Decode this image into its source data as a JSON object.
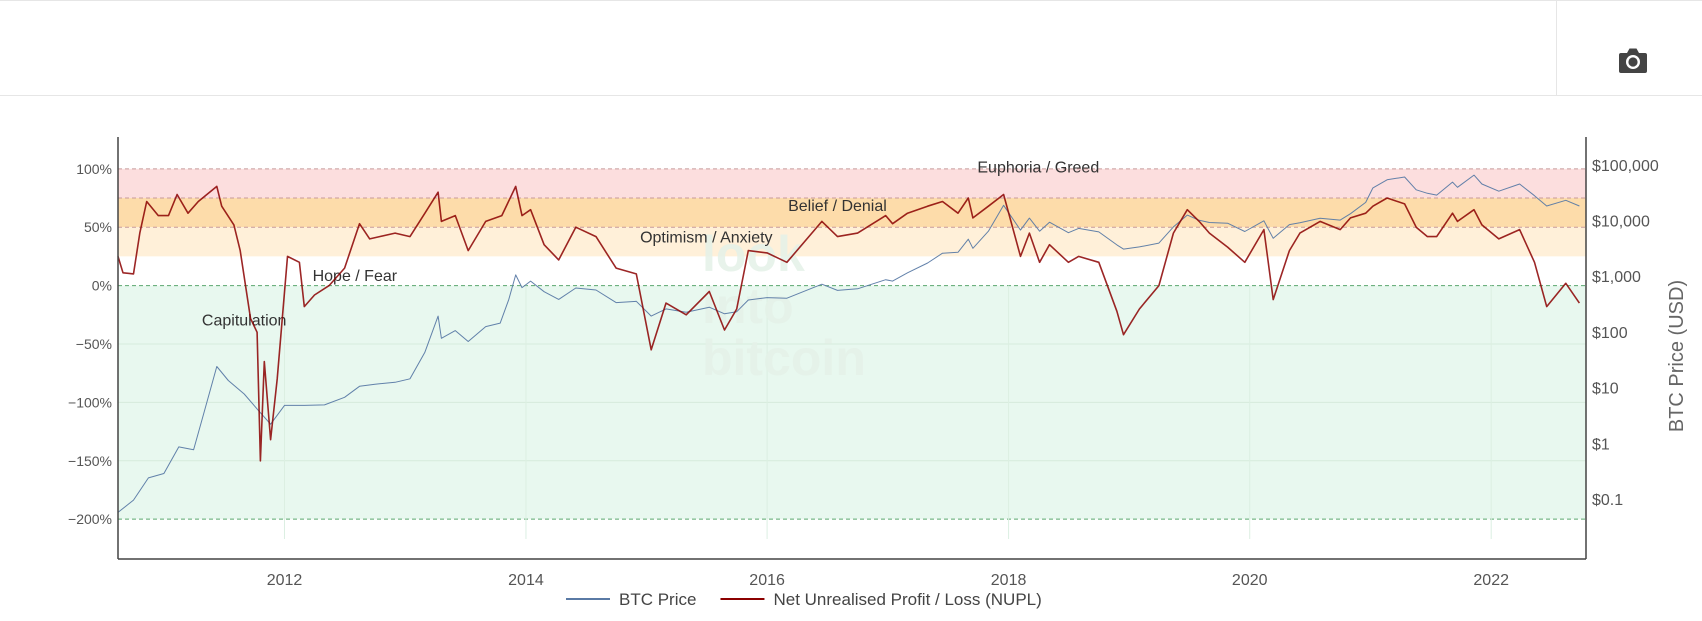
{
  "toolbar": {
    "camera_icon": "camera-icon"
  },
  "chart_data": {
    "type": "line",
    "xlabel": "",
    "ylabel_left": "",
    "ylabel_right": "BTC Price (USD)",
    "x_range": [
      "2010-08-15",
      "2022-10-15"
    ],
    "x_ticks": [
      "2012",
      "2014",
      "2016",
      "2018",
      "2020",
      "2022"
    ],
    "y_left_range": [
      -2.17,
      1.17
    ],
    "y_left_ticks": [
      {
        "v": 1.0,
        "label": "100%"
      },
      {
        "v": 0.5,
        "label": "50%"
      },
      {
        "v": 0.0,
        "label": "0%"
      },
      {
        "v": -0.5,
        "label": "−50%"
      },
      {
        "v": -1.0,
        "label": "−100%"
      },
      {
        "v": -1.5,
        "label": "−150%"
      },
      {
        "v": -2.0,
        "label": "−200%"
      }
    ],
    "y_right_scale": "log",
    "y_right_range": [
      0.02,
      200000
    ],
    "y_right_ticks": [
      {
        "v": 100000,
        "label": "$100,000"
      },
      {
        "v": 10000,
        "label": "$10,000"
      },
      {
        "v": 1000,
        "label": "$1,000"
      },
      {
        "v": 100,
        "label": "$100"
      },
      {
        "v": 10,
        "label": "$10"
      },
      {
        "v": 1,
        "label": "$1"
      },
      {
        "v": 0.1,
        "label": "$0.1"
      }
    ],
    "bands": [
      {
        "label": "Euphoria / Greed",
        "from": 0.75,
        "to": 1.0,
        "color": "#fcdede"
      },
      {
        "label": "Belief / Denial",
        "from": 0.5,
        "to": 0.75,
        "color": "#fddcaa"
      },
      {
        "label": "Optimism / Anxiety",
        "from": 0.25,
        "to": 0.5,
        "color": "#fff0d9"
      },
      {
        "label": "Hope / Fear",
        "from": 0.0,
        "to": 0.25,
        "color": "#ffffff"
      },
      {
        "label": "Capitulation",
        "from": -2.0,
        "to": 0.0,
        "color": "#e8f8ef"
      }
    ],
    "band_label_positions": [
      {
        "label": "Euphoria / Greed",
        "x": "2018-04-01",
        "y": 0.97
      },
      {
        "label": "Belief / Denial",
        "x": "2016-08-01",
        "y": 0.64
      },
      {
        "label": "Optimism / Anxiety",
        "x": "2015-07-01",
        "y": 0.37
      },
      {
        "label": "Hope / Fear",
        "x": "2012-08-01",
        "y": 0.04
      },
      {
        "label": "Capitulation",
        "x": "2011-09-01",
        "y": -0.34
      }
    ],
    "watermark": [
      "look",
      "into",
      "bitcoin"
    ],
    "grid": true,
    "legend_position": "bottom-center",
    "series": [
      {
        "name": "BTC Price",
        "color": "#5a7aa5",
        "axis": "right",
        "points": [
          [
            "2010-08-15",
            0.06
          ],
          [
            "2010-10-01",
            0.1
          ],
          [
            "2010-11-15",
            0.25
          ],
          [
            "2011-01-01",
            0.3
          ],
          [
            "2011-02-15",
            0.9
          ],
          [
            "2011-04-01",
            0.8
          ],
          [
            "2011-05-01",
            3.5
          ],
          [
            "2011-06-10",
            25
          ],
          [
            "2011-07-15",
            14
          ],
          [
            "2011-09-01",
            8
          ],
          [
            "2011-10-15",
            4
          ],
          [
            "2011-11-20",
            2.3
          ],
          [
            "2012-01-01",
            5
          ],
          [
            "2012-03-01",
            5
          ],
          [
            "2012-05-01",
            5.1
          ],
          [
            "2012-07-01",
            7
          ],
          [
            "2012-08-15",
            11
          ],
          [
            "2012-10-01",
            12
          ],
          [
            "2012-12-01",
            13
          ],
          [
            "2013-01-15",
            15
          ],
          [
            "2013-03-01",
            45
          ],
          [
            "2013-04-10",
            200
          ],
          [
            "2013-04-20",
            80
          ],
          [
            "2013-06-01",
            110
          ],
          [
            "2013-07-10",
            70
          ],
          [
            "2013-09-01",
            130
          ],
          [
            "2013-10-15",
            150
          ],
          [
            "2013-11-10",
            400
          ],
          [
            "2013-12-01",
            1100
          ],
          [
            "2013-12-20",
            650
          ],
          [
            "2014-01-15",
            850
          ],
          [
            "2014-02-25",
            550
          ],
          [
            "2014-04-10",
            400
          ],
          [
            "2014-06-01",
            640
          ],
          [
            "2014-08-01",
            590
          ],
          [
            "2014-10-01",
            350
          ],
          [
            "2014-12-01",
            370
          ],
          [
            "2015-01-15",
            200
          ],
          [
            "2015-03-01",
            270
          ],
          [
            "2015-05-01",
            235
          ],
          [
            "2015-07-10",
            290
          ],
          [
            "2015-08-25",
            220
          ],
          [
            "2015-10-01",
            240
          ],
          [
            "2015-11-05",
            390
          ],
          [
            "2016-01-01",
            430
          ],
          [
            "2016-03-01",
            420
          ],
          [
            "2016-06-15",
            750
          ],
          [
            "2016-08-01",
            580
          ],
          [
            "2016-10-01",
            620
          ],
          [
            "2016-12-25",
            900
          ],
          [
            "2017-01-15",
            850
          ],
          [
            "2017-03-01",
            1200
          ],
          [
            "2017-05-01",
            1800
          ],
          [
            "2017-06-15",
            2700
          ],
          [
            "2017-08-01",
            2800
          ],
          [
            "2017-09-01",
            4800
          ],
          [
            "2017-09-15",
            3300
          ],
          [
            "2017-11-01",
            6700
          ],
          [
            "2017-12-17",
            19500
          ],
          [
            "2018-02-06",
            7000
          ],
          [
            "2018-03-05",
            11500
          ],
          [
            "2018-04-05",
            6700
          ],
          [
            "2018-05-05",
            9700
          ],
          [
            "2018-07-01",
            6300
          ],
          [
            "2018-08-01",
            7500
          ],
          [
            "2018-10-01",
            6500
          ],
          [
            "2018-11-25",
            3800
          ],
          [
            "2018-12-15",
            3200
          ],
          [
            "2019-02-01",
            3500
          ],
          [
            "2019-04-01",
            4100
          ],
          [
            "2019-05-15",
            8000
          ],
          [
            "2019-06-26",
            13000
          ],
          [
            "2019-08-01",
            10500
          ],
          [
            "2019-09-01",
            9600
          ],
          [
            "2019-10-26",
            9300
          ],
          [
            "2019-12-17",
            6600
          ],
          [
            "2020-02-13",
            10300
          ],
          [
            "2020-03-12",
            5000
          ],
          [
            "2020-04-30",
            8800
          ],
          [
            "2020-06-01",
            9500
          ],
          [
            "2020-08-01",
            11400
          ],
          [
            "2020-10-01",
            10600
          ],
          [
            "2020-11-01",
            13800
          ],
          [
            "2020-12-17",
            22000
          ],
          [
            "2021-01-08",
            40000
          ],
          [
            "2021-02-20",
            56000
          ],
          [
            "2021-04-14",
            63000
          ],
          [
            "2021-05-19",
            37000
          ],
          [
            "2021-06-22",
            32000
          ],
          [
            "2021-07-20",
            29800
          ],
          [
            "2021-09-06",
            51000
          ],
          [
            "2021-09-21",
            41000
          ],
          [
            "2021-11-10",
            68000
          ],
          [
            "2021-12-04",
            47000
          ],
          [
            "2022-01-24",
            35000
          ],
          [
            "2022-03-28",
            47000
          ],
          [
            "2022-05-12",
            29000
          ],
          [
            "2022-06-18",
            19000
          ],
          [
            "2022-08-15",
            24000
          ],
          [
            "2022-09-25",
            19000
          ]
        ]
      },
      {
        "name": "Net Unrealised Profit / Loss (NUPL)",
        "color": "#8b0000",
        "axis": "left",
        "points": [
          [
            "2010-08-15",
            0.25
          ],
          [
            "2010-08-30",
            0.11
          ],
          [
            "2010-10-01",
            0.1
          ],
          [
            "2010-10-20",
            0.45
          ],
          [
            "2010-11-10",
            0.72
          ],
          [
            "2010-12-15",
            0.6
          ],
          [
            "2011-01-15",
            0.6
          ],
          [
            "2011-02-10",
            0.78
          ],
          [
            "2011-03-15",
            0.62
          ],
          [
            "2011-04-15",
            0.72
          ],
          [
            "2011-06-10",
            0.85
          ],
          [
            "2011-06-25",
            0.68
          ],
          [
            "2011-08-01",
            0.52
          ],
          [
            "2011-08-20",
            0.3
          ],
          [
            "2011-09-20",
            -0.28
          ],
          [
            "2011-10-10",
            -0.4
          ],
          [
            "2011-10-20",
            -1.5
          ],
          [
            "2011-11-01",
            -0.65
          ],
          [
            "2011-11-20",
            -1.32
          ],
          [
            "2011-12-10",
            -0.8
          ],
          [
            "2012-01-10",
            0.25
          ],
          [
            "2012-02-15",
            0.2
          ],
          [
            "2012-03-01",
            -0.18
          ],
          [
            "2012-04-01",
            -0.08
          ],
          [
            "2012-05-15",
            0.0
          ],
          [
            "2012-07-01",
            0.15
          ],
          [
            "2012-08-15",
            0.53
          ],
          [
            "2012-09-15",
            0.4
          ],
          [
            "2012-10-15",
            0.42
          ],
          [
            "2012-12-01",
            0.45
          ],
          [
            "2013-01-15",
            0.42
          ],
          [
            "2013-03-01",
            0.62
          ],
          [
            "2013-04-10",
            0.8
          ],
          [
            "2013-04-20",
            0.55
          ],
          [
            "2013-06-01",
            0.6
          ],
          [
            "2013-07-10",
            0.3
          ],
          [
            "2013-09-01",
            0.55
          ],
          [
            "2013-10-20",
            0.6
          ],
          [
            "2013-12-01",
            0.85
          ],
          [
            "2013-12-20",
            0.6
          ],
          [
            "2014-01-15",
            0.65
          ],
          [
            "2014-02-25",
            0.35
          ],
          [
            "2014-04-10",
            0.22
          ],
          [
            "2014-06-01",
            0.5
          ],
          [
            "2014-08-01",
            0.42
          ],
          [
            "2014-10-01",
            0.15
          ],
          [
            "2014-12-01",
            0.1
          ],
          [
            "2015-01-15",
            -0.55
          ],
          [
            "2015-03-01",
            -0.15
          ],
          [
            "2015-05-01",
            -0.25
          ],
          [
            "2015-07-10",
            -0.05
          ],
          [
            "2015-08-25",
            -0.38
          ],
          [
            "2015-10-01",
            -0.2
          ],
          [
            "2015-11-05",
            0.3
          ],
          [
            "2016-01-01",
            0.28
          ],
          [
            "2016-03-01",
            0.2
          ],
          [
            "2016-06-15",
            0.55
          ],
          [
            "2016-08-01",
            0.42
          ],
          [
            "2016-10-01",
            0.45
          ],
          [
            "2016-12-25",
            0.6
          ],
          [
            "2017-01-15",
            0.53
          ],
          [
            "2017-03-01",
            0.62
          ],
          [
            "2017-05-01",
            0.68
          ],
          [
            "2017-06-15",
            0.72
          ],
          [
            "2017-08-01",
            0.62
          ],
          [
            "2017-09-01",
            0.75
          ],
          [
            "2017-09-15",
            0.58
          ],
          [
            "2017-11-01",
            0.68
          ],
          [
            "2017-12-17",
            0.78
          ],
          [
            "2018-02-06",
            0.25
          ],
          [
            "2018-03-05",
            0.45
          ],
          [
            "2018-04-05",
            0.2
          ],
          [
            "2018-05-05",
            0.35
          ],
          [
            "2018-07-01",
            0.2
          ],
          [
            "2018-08-01",
            0.25
          ],
          [
            "2018-10-01",
            0.2
          ],
          [
            "2018-11-25",
            -0.22
          ],
          [
            "2018-12-15",
            -0.42
          ],
          [
            "2019-02-01",
            -0.2
          ],
          [
            "2019-04-01",
            0.0
          ],
          [
            "2019-05-15",
            0.45
          ],
          [
            "2019-06-26",
            0.65
          ],
          [
            "2019-08-01",
            0.55
          ],
          [
            "2019-09-01",
            0.45
          ],
          [
            "2019-10-26",
            0.33
          ],
          [
            "2019-12-17",
            0.2
          ],
          [
            "2020-02-13",
            0.48
          ],
          [
            "2020-03-12",
            -0.12
          ],
          [
            "2020-04-30",
            0.3
          ],
          [
            "2020-06-01",
            0.45
          ],
          [
            "2020-08-01",
            0.55
          ],
          [
            "2020-10-01",
            0.48
          ],
          [
            "2020-11-01",
            0.58
          ],
          [
            "2020-12-17",
            0.62
          ],
          [
            "2021-01-08",
            0.68
          ],
          [
            "2021-02-20",
            0.75
          ],
          [
            "2021-04-14",
            0.7
          ],
          [
            "2021-05-19",
            0.5
          ],
          [
            "2021-06-22",
            0.42
          ],
          [
            "2021-07-20",
            0.42
          ],
          [
            "2021-09-06",
            0.62
          ],
          [
            "2021-09-21",
            0.55
          ],
          [
            "2021-11-10",
            0.65
          ],
          [
            "2021-12-04",
            0.52
          ],
          [
            "2022-01-24",
            0.4
          ],
          [
            "2022-03-28",
            0.48
          ],
          [
            "2022-05-12",
            0.2
          ],
          [
            "2022-06-18",
            -0.18
          ],
          [
            "2022-08-15",
            0.02
          ],
          [
            "2022-09-25",
            -0.15
          ]
        ]
      }
    ]
  }
}
